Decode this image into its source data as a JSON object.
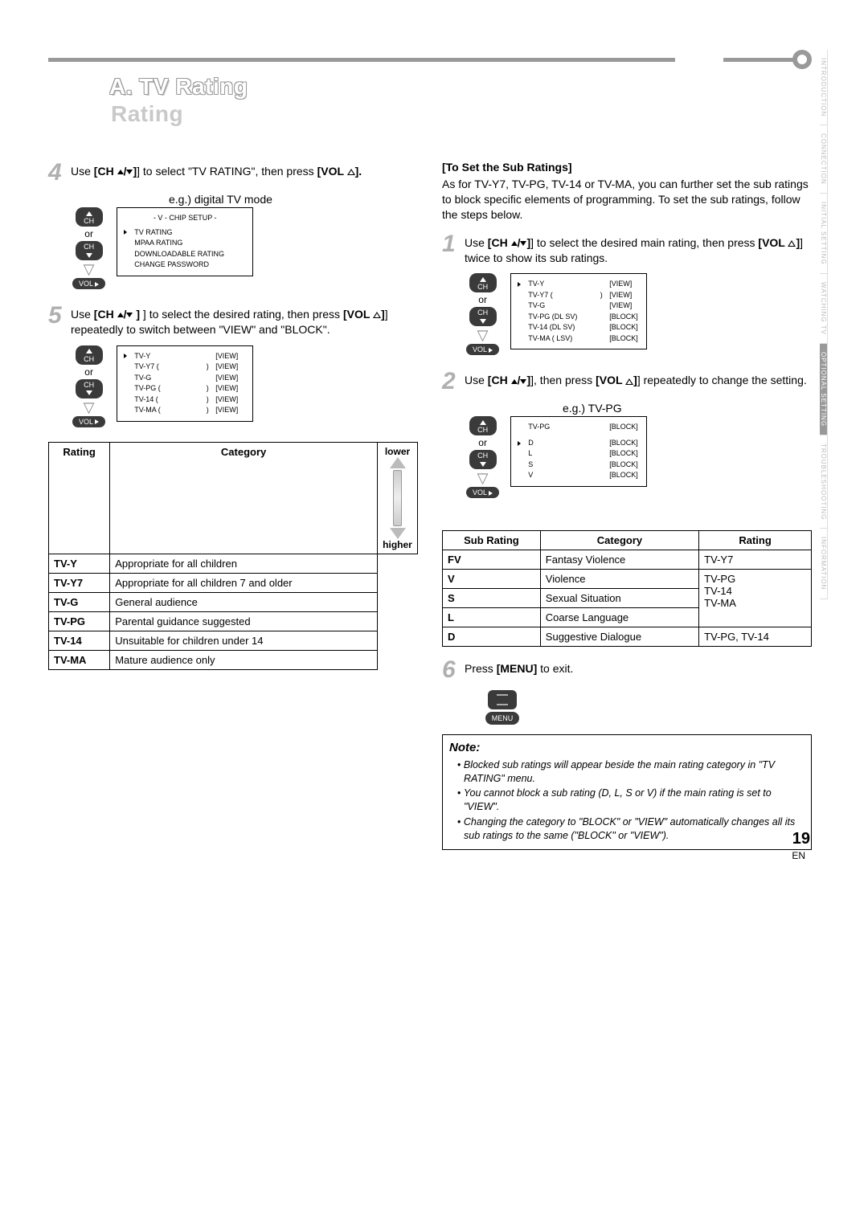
{
  "section_title": "A. TV Rating",
  "side_tabs": [
    "INTRODUCTION",
    "CONNECTION",
    "INITIAL SETTING",
    "WATCHING TV",
    "OPTIONAL SETTING",
    "TROUBLESHOOTING",
    "INFORMATION"
  ],
  "side_tab_active_index": 4,
  "page_number": "19",
  "page_lang": "EN",
  "left": {
    "step4_pre": "Use ",
    "step4_ch": "[CH ",
    "step4_mid": "] to select \"TV RATING\", then press ",
    "step4_vol": "[VOL ",
    "step4_post": "].",
    "eg_label": "e.g.) digital TV mode",
    "remote": {
      "ch": "CH",
      "or": "or",
      "vol": "VOL"
    },
    "osd1_title": "- V - CHIP SETUP -",
    "osd1_items": [
      "TV RATING",
      "MPAA RATING",
      "DOWNLOADABLE RATING",
      "CHANGE PASSWORD"
    ],
    "step5_pre": "Use ",
    "step5_ch": "[CH ",
    "step5_mid": " ] to select the desired rating, then press ",
    "step5_vol": "[VOL ",
    "step5_post": "] repeatedly to switch between \"VIEW\" and \"BLOCK\".",
    "osd2_rows": [
      {
        "k": "TV-Y",
        "v": "[VIEW]",
        "cursor": true,
        "paren": false
      },
      {
        "k": "TV-Y7 (",
        "v": "[VIEW]",
        "paren": true
      },
      {
        "k": "TV-G",
        "v": "[VIEW]",
        "paren": false
      },
      {
        "k": "TV-PG (",
        "v": "[VIEW]",
        "paren": true
      },
      {
        "k": "TV-14 (",
        "v": "[VIEW]",
        "paren": true
      },
      {
        "k": "TV-MA (",
        "v": "[VIEW]",
        "paren": true
      }
    ],
    "rating_table": {
      "headers": [
        "Rating",
        "Category"
      ],
      "rows": [
        {
          "r": "TV-Y",
          "c": "Appropriate for all children"
        },
        {
          "r": "TV-Y7",
          "c": "Appropriate for all children 7 and older"
        },
        {
          "r": "TV-G",
          "c": "General audience"
        },
        {
          "r": "TV-PG",
          "c": "Parental guidance suggested"
        },
        {
          "r": "TV-14",
          "c": "Unsuitable for children under 14"
        },
        {
          "r": "TV-MA",
          "c": "Mature audience only"
        }
      ],
      "lower": "lower",
      "higher": "higher"
    }
  },
  "right": {
    "sub_title": "[To Set the Sub Ratings]",
    "sub_para": "As for TV-Y7, TV-PG, TV-14 or TV-MA, you can further set the sub ratings to block specific elements of programming. To set the sub ratings, follow the steps below.",
    "step1_pre": "Use ",
    "step1_ch": "[CH ",
    "step1_mid": "] to select the desired main rating, then press ",
    "step1_vol": "[VOL ",
    "step1_post": "] twice to show its sub ratings.",
    "osd3_rows": [
      {
        "k": "TV-Y",
        "v": "[VIEW]",
        "cursor": true
      },
      {
        "k": "TV-Y7 (",
        "v": "[VIEW]",
        "paren": true
      },
      {
        "k": "TV-G",
        "v": "[VIEW]"
      },
      {
        "k": "TV-PG (DL SV)",
        "v": "[BLOCK]"
      },
      {
        "k": "TV-14 (DL SV)",
        "v": "[BLOCK]"
      },
      {
        "k": "TV-MA ( LSV)",
        "v": "[BLOCK]"
      }
    ],
    "step2_pre": "Use ",
    "step2_ch": "[CH ",
    "step2_mid": "], then press ",
    "step2_vol": "[VOL ",
    "step2_post": "] repeatedly to change the setting.",
    "eg_tvpg": "e.g.) TV-PG",
    "osd4_head": {
      "k": "TV-PG",
      "v": "[BLOCK]"
    },
    "osd4_rows": [
      {
        "k": "D",
        "v": "[BLOCK]",
        "cursor": true
      },
      {
        "k": "L",
        "v": "[BLOCK]"
      },
      {
        "k": "S",
        "v": "[BLOCK]"
      },
      {
        "k": "V",
        "v": "[BLOCK]"
      }
    ],
    "sub_table": {
      "headers": [
        "Sub Rating",
        "Category",
        "Rating"
      ],
      "rows": [
        {
          "r": "FV",
          "c": "Fantasy Violence",
          "rt": "TV-Y7"
        },
        {
          "r": "V",
          "c": "Violence"
        },
        {
          "r": "S",
          "c": "Sexual Situation"
        },
        {
          "r": "L",
          "c": "Coarse Language"
        },
        {
          "r": "D",
          "c": "Suggestive Dialogue",
          "rt": "TV-PG, TV-14"
        }
      ],
      "rating_group": "TV-PG\nTV-14\nTV-MA"
    },
    "step6_pre": "Press ",
    "step6_menu": "[MENU]",
    "step6_post": " to exit.",
    "menu_label": "MENU",
    "note_title": "Note:",
    "notes": [
      "Blocked sub ratings will appear beside the main rating category in \"TV RATING\" menu.",
      "You cannot block a sub rating (D, L, S or V) if the main rating is set to \"VIEW\".",
      "Changing the category to \"BLOCK\" or \"VIEW\" automatically changes all its sub ratings to the same (\"BLOCK\" or \"VIEW\")."
    ]
  }
}
